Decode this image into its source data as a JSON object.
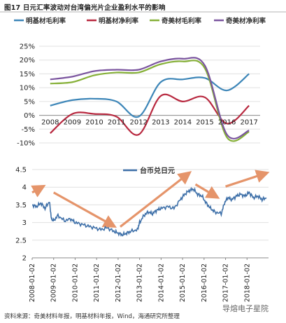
{
  "title": "图17 日元汇率波动对台湾偏光片企业盈利水平的影响",
  "source": "资料来源：奇美材料年报，明基材料年报，Wind，海通研究所整理",
  "watermark": "导熔电子星院",
  "chart_data": [
    {
      "type": "line",
      "categories": [
        "2008",
        "2009",
        "2010",
        "2011",
        "2012",
        "2013",
        "2014",
        "2015",
        "2016",
        "2017"
      ],
      "ylim": [
        -0.1,
        0.25
      ],
      "yticks": [
        -0.1,
        -0.05,
        0,
        0.05,
        0.1,
        0.15,
        0.2,
        0.25
      ],
      "ytick_labels": [
        "-10%",
        "-5%",
        "0%",
        "5%",
        "10%",
        "15%",
        "20%",
        "25%"
      ],
      "series": [
        {
          "name": "明基材毛利率",
          "color": "#3d86b8",
          "values": [
            0.035,
            0.055,
            0.06,
            0.05,
            -0.005,
            0.12,
            0.13,
            0.135,
            0.09,
            0.15
          ]
        },
        {
          "name": "明基材净利率",
          "color": "#b8283f",
          "values": [
            -0.065,
            0.005,
            0.005,
            -0.005,
            -0.07,
            0.07,
            0.05,
            0.065,
            -0.03,
            0.035
          ]
        },
        {
          "name": "奇美材毛利率",
          "color": "#86b038",
          "values": [
            0.115,
            0.12,
            0.145,
            0.155,
            0.155,
            0.185,
            0.195,
            0.17,
            -0.08,
            -0.06
          ]
        },
        {
          "name": "奇美材净利率",
          "color": "#7b559f",
          "values": [
            0.13,
            0.14,
            0.16,
            0.165,
            0.165,
            0.195,
            0.205,
            0.18,
            -0.07,
            -0.055
          ]
        }
      ],
      "grid": true,
      "legend_position": "top"
    },
    {
      "type": "line",
      "x_labels": [
        "2008-01-02",
        "2009-01-02",
        "2010-01-02",
        "2011-01-02",
        "2012-01-02",
        "2013-01-02",
        "2014-01-02",
        "2015-01-02",
        "2016-01-02",
        "2017-01-02",
        "2018-01-02"
      ],
      "ylim": [
        2.0,
        4.5
      ],
      "yticks": [
        2.0,
        2.5,
        3.0,
        3.5,
        4.0,
        4.5
      ],
      "ytick_labels": [
        "2",
        "2.5",
        "3",
        "3.5",
        "4",
        "4.5"
      ],
      "series": [
        {
          "name": "台币兑日元",
          "color": "#3d6fa8",
          "points": [
            [
              2008.0,
              3.5
            ],
            [
              2008.2,
              3.45
            ],
            [
              2008.4,
              3.55
            ],
            [
              2008.6,
              3.4
            ],
            [
              2008.8,
              3.6
            ],
            [
              2008.9,
              3.1
            ],
            [
              2009.0,
              3.05
            ],
            [
              2009.2,
              3.2
            ],
            [
              2009.5,
              3.05
            ],
            [
              2009.8,
              3.1
            ],
            [
              2010.0,
              3.0
            ],
            [
              2010.3,
              2.95
            ],
            [
              2010.6,
              2.9
            ],
            [
              2010.9,
              2.85
            ],
            [
              2011.2,
              2.8
            ],
            [
              2011.5,
              2.85
            ],
            [
              2011.8,
              2.75
            ],
            [
              2012.0,
              2.7
            ],
            [
              2012.2,
              2.65
            ],
            [
              2012.4,
              2.7
            ],
            [
              2012.6,
              2.75
            ],
            [
              2012.9,
              2.8
            ],
            [
              2013.0,
              3.0
            ],
            [
              2013.2,
              3.2
            ],
            [
              2013.4,
              3.3
            ],
            [
              2013.6,
              3.25
            ],
            [
              2013.8,
              3.35
            ],
            [
              2014.0,
              3.4
            ],
            [
              2014.3,
              3.45
            ],
            [
              2014.6,
              3.4
            ],
            [
              2014.9,
              3.65
            ],
            [
              2015.1,
              3.8
            ],
            [
              2015.3,
              3.9
            ],
            [
              2015.5,
              3.95
            ],
            [
              2015.7,
              3.8
            ],
            [
              2015.9,
              3.75
            ],
            [
              2016.1,
              3.55
            ],
            [
              2016.3,
              3.4
            ],
            [
              2016.5,
              3.3
            ],
            [
              2016.8,
              3.25
            ],
            [
              2016.95,
              3.55
            ],
            [
              2017.1,
              3.7
            ],
            [
              2017.3,
              3.65
            ],
            [
              2017.5,
              3.75
            ],
            [
              2017.7,
              3.8
            ],
            [
              2017.9,
              3.75
            ],
            [
              2018.1,
              3.85
            ],
            [
              2018.3,
              3.7
            ],
            [
              2018.5,
              3.75
            ],
            [
              2018.7,
              3.65
            ],
            [
              2018.9,
              3.7
            ]
          ]
        }
      ],
      "annotations": [
        {
          "type": "arrow",
          "from": [
            2008.0,
            3.85
          ],
          "to": [
            2008.5,
            4.02
          ]
        },
        {
          "type": "arrow",
          "from": [
            2009.0,
            3.85
          ],
          "to": [
            2011.8,
            2.9
          ]
        },
        {
          "type": "arrow",
          "from": [
            2012.1,
            2.88
          ],
          "to": [
            2015.3,
            4.4
          ]
        },
        {
          "type": "arrow",
          "from": [
            2015.6,
            4.08
          ],
          "to": [
            2016.6,
            3.72
          ]
        },
        {
          "type": "arrow",
          "from": [
            2017.0,
            4.02
          ],
          "to": [
            2018.9,
            4.4
          ]
        }
      ],
      "grid": true,
      "legend_position": "top"
    }
  ]
}
